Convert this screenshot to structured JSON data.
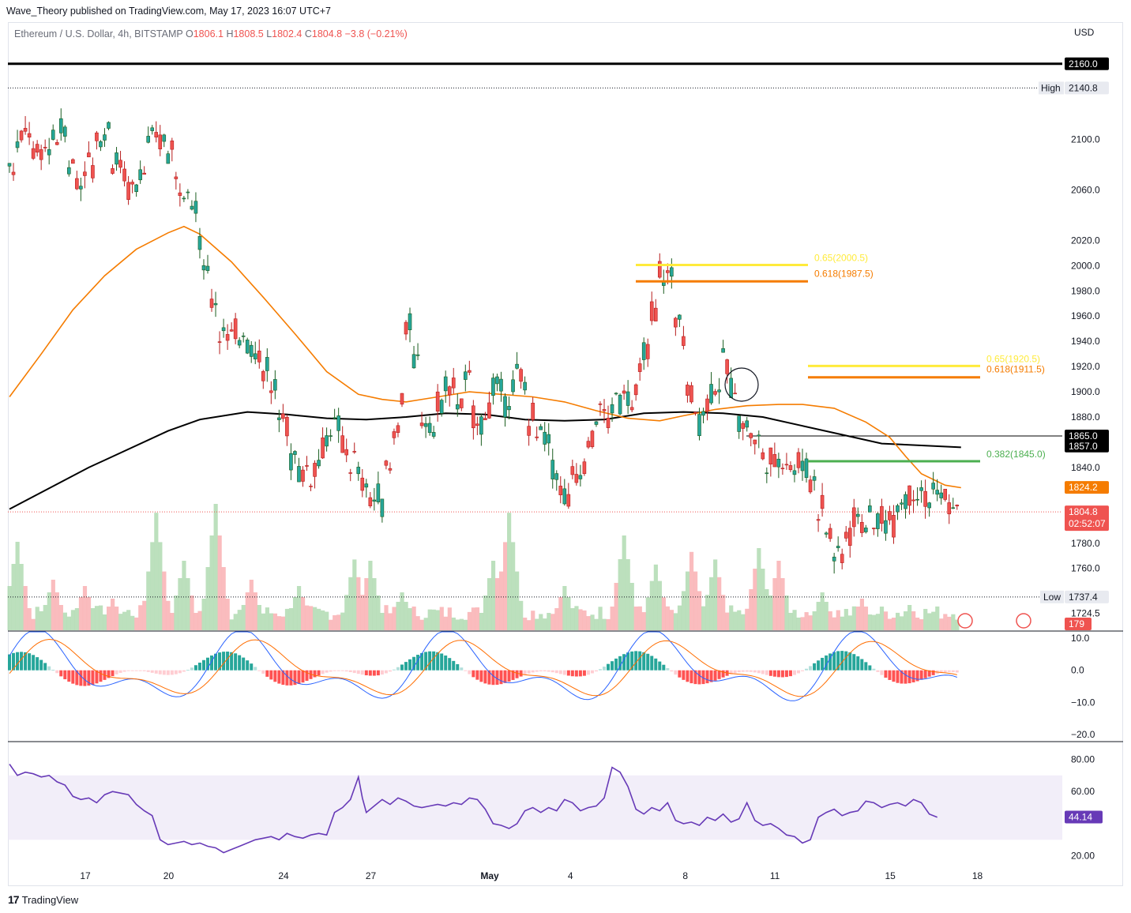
{
  "header": {
    "published": "Wave_Theory published on TradingView.com, May 17, 2023 16:07 UTC+7"
  },
  "footer": {
    "brand": "TradingView",
    "logo": "tradingview-logo-icon"
  },
  "colors": {
    "bull": "#26a69a",
    "bear": "#ef5350",
    "ema50": "#f57c00",
    "ema200": "#000000",
    "fib650": "#ffeb3b",
    "fib618": "#f57c00",
    "fib382": "#4caf50",
    "rsi": "#673ab7",
    "macd": "#2962ff",
    "signal": "#ff6d00"
  },
  "chart_data": {
    "type": "candlestick",
    "symbol": {
      "name": "Ethereum / U.S. Dollar, 4h, BITSTAMP",
      "o_label": "O",
      "o": "1806.1",
      "h_label": "H",
      "h": "1808.5",
      "l_label": "L",
      "l": "1802.4",
      "c_label": "C",
      "c": "1804.8",
      "change": "−3.8 (−0.21%)"
    },
    "currency": "USD",
    "price_ylim": [
      1711,
      2178
    ],
    "price_ticks": [
      "2100.0",
      "2060.0",
      "2020.0",
      "2000.0",
      "1980.0",
      "1960.0",
      "1940.0",
      "1920.0",
      "1900.0",
      "1880.0",
      "1840.0",
      "1780.0",
      "1760.0",
      "1724.5"
    ],
    "x_ticks": [
      "17",
      "20",
      "24",
      "27",
      "May",
      "4",
      "8",
      "11",
      "15",
      "18"
    ],
    "horizontal_lines": [
      {
        "price": 2160.0,
        "label": "2160.0"
      },
      {
        "price": 1865.0,
        "label": "1865.0"
      }
    ],
    "high": {
      "label": "High",
      "value": "2140.8",
      "price": 2140.8
    },
    "low": {
      "label": "Low",
      "value": "1737.4",
      "price": 1737.4
    },
    "fib_levels": [
      {
        "label": "0.65(2000.5)",
        "price": 2000.5,
        "color": "#ffeb3b"
      },
      {
        "label": "0.618(1987.5)",
        "price": 1987.5,
        "color": "#f57c00"
      },
      {
        "label": "0.65(1920.5)",
        "price": 1920.5,
        "color": "#ffeb3b"
      },
      {
        "label": "0.618(1911.5)",
        "price": 1911.5,
        "color": "#f57c00"
      },
      {
        "label": "0.382(1845.0)",
        "price": 1845.0,
        "color": "#4caf50"
      }
    ],
    "ema200_label": "1857.0",
    "ema200_value": 1857.0,
    "ema50_label": "1824.2",
    "ema50_value": 1824.2,
    "last_price_label": "1804.8",
    "last_price": 1804.8,
    "countdown": "02:52:07",
    "volume_label": "179",
    "ema50_path": [
      [
        0,
        1896
      ],
      [
        8,
        1930
      ],
      [
        16,
        1965
      ],
      [
        24,
        1992
      ],
      [
        32,
        2013
      ],
      [
        40,
        2026
      ],
      [
        44,
        2031
      ],
      [
        48,
        2025
      ],
      [
        56,
        2003
      ],
      [
        64,
        1975
      ],
      [
        72,
        1946
      ],
      [
        80,
        1916
      ],
      [
        88,
        1898
      ],
      [
        94,
        1894
      ],
      [
        100,
        1892
      ],
      [
        108,
        1896
      ],
      [
        116,
        1900
      ],
      [
        124,
        1898
      ],
      [
        132,
        1896
      ],
      [
        140,
        1892
      ],
      [
        148,
        1885
      ],
      [
        156,
        1879
      ],
      [
        164,
        1877
      ],
      [
        170,
        1881
      ],
      [
        178,
        1886
      ],
      [
        186,
        1889
      ],
      [
        194,
        1890
      ],
      [
        200,
        1890
      ],
      [
        208,
        1887
      ],
      [
        216,
        1876
      ],
      [
        222,
        1864
      ],
      [
        226,
        1849
      ],
      [
        230,
        1835
      ],
      [
        236,
        1826
      ],
      [
        240,
        1824
      ]
    ],
    "ema200_path": [
      [
        0,
        1807
      ],
      [
        20,
        1840
      ],
      [
        40,
        1869
      ],
      [
        48,
        1878
      ],
      [
        60,
        1884
      ],
      [
        70,
        1882
      ],
      [
        80,
        1879
      ],
      [
        90,
        1878
      ],
      [
        100,
        1880
      ],
      [
        110,
        1883
      ],
      [
        120,
        1882
      ],
      [
        130,
        1878
      ],
      [
        140,
        1877
      ],
      [
        150,
        1878
      ],
      [
        160,
        1883
      ],
      [
        170,
        1884
      ],
      [
        180,
        1883
      ],
      [
        190,
        1880
      ],
      [
        200,
        1873
      ],
      [
        210,
        1866
      ],
      [
        220,
        1859
      ],
      [
        240,
        1856
      ]
    ],
    "volume_spikes": [
      [
        2,
        0.7
      ],
      [
        11,
        0.4
      ],
      [
        19,
        0.35
      ],
      [
        26,
        0.25
      ],
      [
        37,
        0.93
      ],
      [
        44,
        0.55
      ],
      [
        52,
        1.0
      ],
      [
        61,
        0.4
      ],
      [
        73,
        0.35
      ],
      [
        87,
        0.56
      ],
      [
        91,
        0.55
      ],
      [
        99,
        0.3
      ],
      [
        122,
        0.55
      ],
      [
        126,
        0.93
      ],
      [
        140,
        0.35
      ],
      [
        155,
        0.75
      ],
      [
        163,
        0.52
      ],
      [
        172,
        0.62
      ],
      [
        178,
        0.56
      ],
      [
        189,
        0.65
      ],
      [
        194,
        0.55
      ],
      [
        205,
        0.3
      ],
      [
        215,
        0.25
      ],
      [
        227,
        0.2
      ]
    ],
    "macd_ylim": [
      -22,
      12
    ],
    "macd_ticks": [
      "10.0",
      "0.0",
      "−10.0",
      "−20.0"
    ],
    "rsi_ylim": [
      12,
      90
    ],
    "rsi_ticks": [
      "80.00",
      "60.00",
      "20.00"
    ],
    "rsi_band": [
      30,
      70
    ],
    "rsi_label": "44.14",
    "rsi_path": [
      [
        0,
        77
      ],
      [
        2,
        70
      ],
      [
        4,
        72
      ],
      [
        6,
        71
      ],
      [
        8,
        69
      ],
      [
        10,
        70
      ],
      [
        12,
        66
      ],
      [
        14,
        64
      ],
      [
        16,
        57
      ],
      [
        18,
        55
      ],
      [
        20,
        56
      ],
      [
        22,
        53
      ],
      [
        24,
        58
      ],
      [
        26,
        60
      ],
      [
        28,
        59
      ],
      [
        30,
        58
      ],
      [
        32,
        52
      ],
      [
        34,
        48
      ],
      [
        36,
        45
      ],
      [
        38,
        30
      ],
      [
        40,
        27
      ],
      [
        42,
        28
      ],
      [
        44,
        29
      ],
      [
        46,
        27
      ],
      [
        48,
        28
      ],
      [
        50,
        26
      ],
      [
        52,
        25
      ],
      [
        54,
        22
      ],
      [
        56,
        24
      ],
      [
        58,
        26
      ],
      [
        60,
        28
      ],
      [
        62,
        30
      ],
      [
        64,
        31
      ],
      [
        66,
        32
      ],
      [
        68,
        30
      ],
      [
        70,
        34
      ],
      [
        72,
        32
      ],
      [
        74,
        31
      ],
      [
        76,
        33
      ],
      [
        78,
        34
      ],
      [
        80,
        33
      ],
      [
        82,
        47
      ],
      [
        84,
        50
      ],
      [
        86,
        55
      ],
      [
        88,
        69
      ],
      [
        89,
        56
      ],
      [
        90,
        47
      ],
      [
        92,
        51
      ],
      [
        94,
        55
      ],
      [
        96,
        52
      ],
      [
        98,
        56
      ],
      [
        100,
        54
      ],
      [
        102,
        51
      ],
      [
        104,
        50
      ],
      [
        106,
        51
      ],
      [
        108,
        52
      ],
      [
        110,
        51
      ],
      [
        112,
        53
      ],
      [
        114,
        52
      ],
      [
        116,
        56
      ],
      [
        118,
        55
      ],
      [
        120,
        49
      ],
      [
        122,
        40
      ],
      [
        124,
        39
      ],
      [
        126,
        37
      ],
      [
        128,
        40
      ],
      [
        130,
        48
      ],
      [
        132,
        50
      ],
      [
        134,
        47
      ],
      [
        136,
        50
      ],
      [
        138,
        48
      ],
      [
        140,
        55
      ],
      [
        142,
        53
      ],
      [
        144,
        48
      ],
      [
        146,
        50
      ],
      [
        148,
        51
      ],
      [
        150,
        56
      ],
      [
        152,
        75
      ],
      [
        154,
        72
      ],
      [
        156,
        63
      ],
      [
        158,
        49
      ],
      [
        160,
        46
      ],
      [
        162,
        50
      ],
      [
        164,
        48
      ],
      [
        166,
        53
      ],
      [
        168,
        42
      ],
      [
        170,
        40
      ],
      [
        172,
        41
      ],
      [
        174,
        39
      ],
      [
        176,
        44
      ],
      [
        178,
        42
      ],
      [
        180,
        46
      ],
      [
        182,
        41
      ],
      [
        184,
        43
      ],
      [
        186,
        53
      ],
      [
        188,
        42
      ],
      [
        190,
        39
      ],
      [
        192,
        40
      ],
      [
        194,
        37
      ],
      [
        196,
        33
      ],
      [
        198,
        32
      ],
      [
        200,
        28
      ],
      [
        202,
        30
      ],
      [
        204,
        44
      ],
      [
        206,
        47
      ],
      [
        208,
        49
      ],
      [
        210,
        45
      ],
      [
        212,
        47
      ],
      [
        214,
        48
      ],
      [
        216,
        54
      ],
      [
        218,
        53
      ],
      [
        220,
        50
      ],
      [
        222,
        52
      ],
      [
        224,
        53
      ],
      [
        226,
        51
      ],
      [
        228,
        55
      ],
      [
        230,
        53
      ],
      [
        232,
        46
      ],
      [
        234,
        44
      ]
    ]
  }
}
